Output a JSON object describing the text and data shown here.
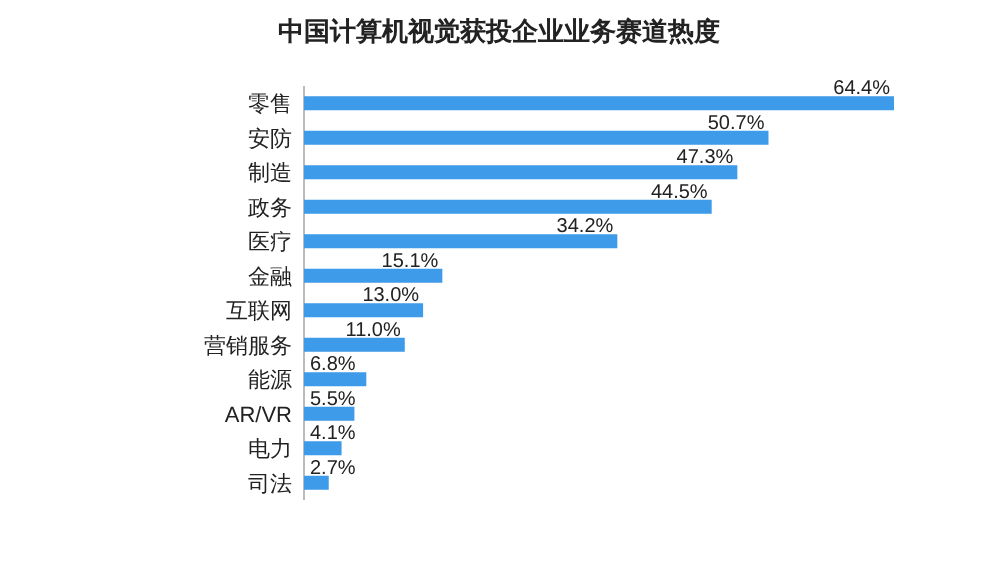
{
  "chart_data": {
    "type": "bar",
    "orientation": "horizontal",
    "title": "中国计算机视觉获投企业业务赛道热度",
    "categories": [
      "零售",
      "安防",
      "制造",
      "政务",
      "医疗",
      "金融",
      "互联网",
      "营销服务",
      "能源",
      "AR/VR",
      "电力",
      "司法"
    ],
    "values": [
      64.4,
      50.7,
      47.3,
      44.5,
      34.2,
      15.1,
      13.0,
      11.0,
      6.8,
      5.5,
      4.1,
      2.7
    ],
    "value_labels": [
      "64.4%",
      "50.7%",
      "47.3%",
      "44.5%",
      "34.2%",
      "15.1%",
      "13.0%",
      "11.0%",
      "6.8%",
      "5.5%",
      "4.1%",
      "2.7%"
    ],
    "color": "#3d9be9"
  }
}
